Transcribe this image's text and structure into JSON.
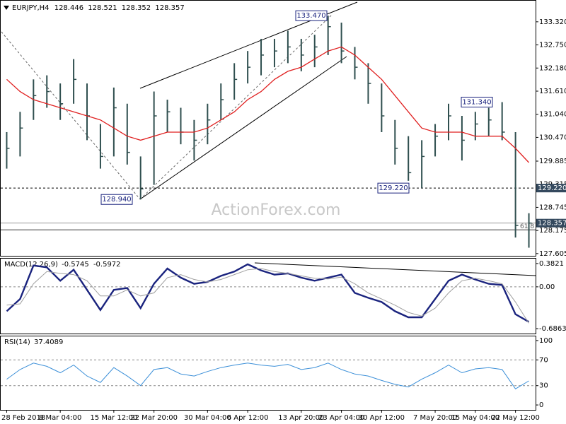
{
  "chart_data": [
    {
      "type": "ohlc",
      "title": "EURJPY,H4",
      "quote": [
        128.446,
        128.521,
        128.352,
        128.357
      ],
      "watermark": "ActionForex.com",
      "categories": [
        "28 Feb 2018",
        null,
        null,
        null,
        "8 Mar 04:00",
        null,
        null,
        null,
        "15 Mar 12:00",
        null,
        null,
        "22 Mar 20:00",
        null,
        null,
        null,
        "30 Mar 04:00",
        null,
        null,
        "6 Apr 12:00",
        null,
        null,
        null,
        "13 Apr 20:00",
        null,
        null,
        "23 Apr 04:00",
        null,
        null,
        "30 Apr 12:00",
        null,
        null,
        null,
        "7 May 20:00",
        null,
        null,
        "15 May 04:00",
        null,
        null,
        "22 May 12:00",
        null
      ],
      "high": [
        130.6,
        131.1,
        131.9,
        132.0,
        131.8,
        132.4,
        131.8,
        130.8,
        131.7,
        131.3,
        130.0,
        131.6,
        131.4,
        131.2,
        130.9,
        131.3,
        131.8,
        132.3,
        132.6,
        132.9,
        132.9,
        133.1,
        132.9,
        133.0,
        133.47,
        133.3,
        132.7,
        132.3,
        131.8,
        130.9,
        130.5,
        130.4,
        130.8,
        131.3,
        131.0,
        131.1,
        131.2,
        131.34,
        130.6,
        128.6
      ],
      "low": [
        129.7,
        130.0,
        130.9,
        131.2,
        130.9,
        131.3,
        130.4,
        129.7,
        130.0,
        129.8,
        128.94,
        129.3,
        130.6,
        130.3,
        129.9,
        130.3,
        130.9,
        131.4,
        131.8,
        132.0,
        132.2,
        132.3,
        132.1,
        132.2,
        132.5,
        132.3,
        131.9,
        131.3,
        130.6,
        129.8,
        129.4,
        129.22,
        130.0,
        130.4,
        129.9,
        130.4,
        130.5,
        130.4,
        128.0,
        127.75
      ],
      "close": [
        130.2,
        130.7,
        131.5,
        131.6,
        131.3,
        131.9,
        131.0,
        130.0,
        131.2,
        130.1,
        129.2,
        131.0,
        131.1,
        130.6,
        130.4,
        130.9,
        131.4,
        131.9,
        132.2,
        132.5,
        132.6,
        132.7,
        132.5,
        132.7,
        133.2,
        132.6,
        132.2,
        131.8,
        131.0,
        130.2,
        129.6,
        130.0,
        130.5,
        131.0,
        130.4,
        130.8,
        130.9,
        130.6,
        128.3,
        128.357
      ],
      "color": "#2f4f4f",
      "ma": {
        "color": "#e02020",
        "values": [
          131.9,
          131.6,
          131.4,
          131.3,
          131.2,
          131.1,
          131.0,
          130.9,
          130.7,
          130.5,
          130.4,
          130.5,
          130.6,
          130.6,
          130.6,
          130.7,
          130.9,
          131.1,
          131.4,
          131.6,
          131.9,
          132.1,
          132.2,
          132.4,
          132.6,
          132.7,
          132.5,
          132.2,
          131.9,
          131.5,
          131.1,
          130.7,
          130.6,
          130.6,
          130.6,
          130.5,
          130.5,
          130.5,
          130.2,
          129.85
        ]
      },
      "ylim": [
        127.55,
        133.84
      ],
      "yticks": [
        127.605,
        128.175,
        128.745,
        129.315,
        129.885,
        {
          "value": 130.47,
          "label": "130.470"
        },
        {
          "value": 131.04,
          "label": "131.040"
        },
        {
          "value": 131.61,
          "label": "131.610"
        },
        {
          "value": 132.18,
          "label": "132.180"
        },
        {
          "value": 132.75,
          "label": "132.750"
        },
        {
          "value": 133.32,
          "label": "133.320"
        }
      ],
      "annotations": [
        {
          "value": 133.47,
          "label": "133.470"
        },
        {
          "value": 128.94,
          "label": "128.940"
        },
        {
          "value": 129.22,
          "label": "129.220"
        },
        {
          "value": 131.34,
          "label": "131.340"
        }
      ],
      "hlines": [
        {
          "value": 129.22,
          "label": "129.220",
          "style": "dashed"
        },
        {
          "value": 128.357,
          "label": "128.357",
          "style": "solid"
        }
      ],
      "fib": {
        "level": 61.8,
        "price": 128.19
      }
    },
    {
      "type": "macd",
      "title": "MACD(12,26,9)",
      "last": [
        -0.5745,
        -0.5972
      ],
      "series": [
        {
          "color": "#1a237e",
          "values": [
            -0.4,
            -0.2,
            0.35,
            0.32,
            0.1,
            0.28,
            -0.05,
            -0.38,
            -0.05,
            -0.02,
            -0.35,
            0.05,
            0.3,
            0.15,
            0.05,
            0.08,
            0.18,
            0.25,
            0.37,
            0.27,
            0.2,
            0.22,
            0.15,
            0.1,
            0.15,
            0.2,
            -0.1,
            -0.18,
            -0.25,
            -0.4,
            -0.5,
            -0.5,
            -0.2,
            0.1,
            0.2,
            0.12,
            0.05,
            0.03,
            -0.45,
            -0.5745
          ]
        },
        {
          "color": "#a0a0a0",
          "values": [
            -0.3,
            -0.28,
            0.05,
            0.25,
            0.22,
            0.2,
            0.1,
            -0.15,
            -0.15,
            -0.05,
            -0.15,
            -0.1,
            0.15,
            0.2,
            0.12,
            0.08,
            0.12,
            0.2,
            0.28,
            0.3,
            0.25,
            0.22,
            0.18,
            0.14,
            0.13,
            0.16,
            0.05,
            -0.1,
            -0.2,
            -0.3,
            -0.42,
            -0.48,
            -0.35,
            -0.1,
            0.1,
            0.14,
            0.1,
            0.05,
            -0.25,
            -0.5972
          ]
        }
      ],
      "ylim": [
        -0.7667,
        0.4625
      ],
      "yticks": [
        -0.6863,
        {
          "value": 0,
          "label": "0.00"
        },
        0.3821
      ]
    },
    {
      "type": "rsi",
      "title": "RSI(14)",
      "last": 37.4089,
      "series": [
        {
          "color": "#3b8fd8",
          "values": [
            40,
            55,
            65,
            60,
            50,
            62,
            45,
            35,
            58,
            45,
            30,
            55,
            58,
            48,
            45,
            52,
            58,
            62,
            65,
            62,
            60,
            63,
            55,
            58,
            65,
            55,
            48,
            45,
            38,
            32,
            28,
            40,
            50,
            62,
            50,
            56,
            58,
            55,
            25,
            37.4089
          ]
        }
      ],
      "ylim": [
        -7.6,
        106.5
      ],
      "yticks": [
        0,
        30,
        70,
        100
      ]
    }
  ]
}
